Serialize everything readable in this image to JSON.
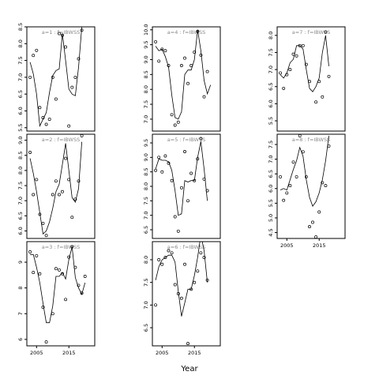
{
  "figure": {
    "xlabel": "Year"
  },
  "chart_data": [
    {
      "type": "scatter",
      "title": "a=1 : f=IBWSS",
      "xlim": [
        2002,
        2023
      ],
      "ylim": [
        5.4,
        8.5
      ],
      "yticks": [
        5.5,
        6.0,
        6.5,
        7.0,
        7.5,
        8.0,
        8.5
      ],
      "xticks": [],
      "show_x_tick_labels": false,
      "points": [
        [
          2003,
          7.0
        ],
        [
          2004,
          7.65
        ],
        [
          2005,
          7.8
        ],
        [
          2006,
          6.1
        ],
        [
          2007,
          5.8
        ],
        [
          2008,
          5.6
        ],
        [
          2009,
          5.75
        ],
        [
          2010,
          7.0
        ],
        [
          2011,
          6.35
        ],
        [
          2012,
          8.3
        ],
        [
          2013,
          8.25
        ],
        [
          2014,
          7.9
        ],
        [
          2015,
          5.55
        ],
        [
          2016,
          6.7
        ],
        [
          2017,
          7.0
        ],
        [
          2018,
          7.55
        ],
        [
          2019,
          8.4
        ]
      ],
      "fit": [
        [
          2003,
          7.45
        ],
        [
          2004,
          7.1
        ],
        [
          2005,
          6.5
        ],
        [
          2006,
          5.55
        ],
        [
          2007,
          5.75
        ],
        [
          2008,
          5.95
        ],
        [
          2009,
          6.55
        ],
        [
          2010,
          7.05
        ],
        [
          2011,
          7.2
        ],
        [
          2012,
          7.25
        ],
        [
          2013,
          8.3
        ],
        [
          2014,
          7.5
        ],
        [
          2015,
          6.65
        ],
        [
          2016,
          6.5
        ],
        [
          2017,
          6.45
        ],
        [
          2018,
          7.3
        ],
        [
          2019,
          8.5
        ]
      ]
    },
    {
      "type": "scatter",
      "title": "a=2 : f=IBWSS",
      "xlim": [
        2002,
        2023
      ],
      "ylim": [
        5.75,
        9.2
      ],
      "yticks": [
        6.0,
        6.5,
        7.0,
        7.5,
        8.0,
        8.5,
        9.0
      ],
      "xticks": [],
      "show_x_tick_labels": false,
      "points": [
        [
          2003,
          8.6
        ],
        [
          2004,
          7.2
        ],
        [
          2005,
          7.7
        ],
        [
          2006,
          6.55
        ],
        [
          2007,
          6.25
        ],
        [
          2008,
          5.85
        ],
        [
          2010,
          7.2
        ],
        [
          2011,
          7.65
        ],
        [
          2012,
          7.2
        ],
        [
          2013,
          7.3
        ],
        [
          2014,
          8.4
        ],
        [
          2015,
          7.7
        ],
        [
          2016,
          6.45
        ],
        [
          2017,
          7.05
        ],
        [
          2018,
          7.65
        ],
        [
          2019,
          9.15
        ]
      ],
      "fit": [
        [
          2003,
          8.4
        ],
        [
          2004,
          7.9
        ],
        [
          2005,
          7.3
        ],
        [
          2006,
          6.6
        ],
        [
          2007,
          5.9
        ],
        [
          2008,
          6.0
        ],
        [
          2009,
          6.3
        ],
        [
          2010,
          6.75
        ],
        [
          2011,
          7.3
        ],
        [
          2012,
          7.55
        ],
        [
          2013,
          8.2
        ],
        [
          2014,
          8.9
        ],
        [
          2015,
          8.0
        ],
        [
          2016,
          7.1
        ],
        [
          2017,
          6.95
        ],
        [
          2018,
          7.4
        ],
        [
          2019,
          8.95
        ]
      ]
    },
    {
      "type": "scatter",
      "title": "a=3 : f=IBWSS",
      "xlim": [
        2002,
        2023
      ],
      "ylim": [
        5.75,
        9.8
      ],
      "yticks": [
        6,
        7,
        8,
        9
      ],
      "xticks": [
        2005,
        2015
      ],
      "show_x_tick_labels": true,
      "points": [
        [
          2003,
          9.4
        ],
        [
          2004,
          8.6
        ],
        [
          2005,
          9.25
        ],
        [
          2006,
          8.55
        ],
        [
          2007,
          7.25
        ],
        [
          2008,
          5.9
        ],
        [
          2010,
          7.0
        ],
        [
          2011,
          8.75
        ],
        [
          2012,
          8.7
        ],
        [
          2013,
          8.55
        ],
        [
          2014,
          7.55
        ],
        [
          2015,
          9.2
        ],
        [
          2016,
          9.6
        ],
        [
          2017,
          8.8
        ],
        [
          2018,
          8.1
        ],
        [
          2019,
          7.8
        ],
        [
          2020,
          8.45
        ]
      ],
      "fit": [
        [
          2003,
          9.3
        ],
        [
          2004,
          9.3
        ],
        [
          2005,
          8.8
        ],
        [
          2006,
          8.2
        ],
        [
          2007,
          7.4
        ],
        [
          2008,
          6.65
        ],
        [
          2009,
          6.65
        ],
        [
          2010,
          7.3
        ],
        [
          2011,
          8.45
        ],
        [
          2012,
          8.45
        ],
        [
          2013,
          8.6
        ],
        [
          2014,
          8.35
        ],
        [
          2015,
          9.1
        ],
        [
          2016,
          9.6
        ],
        [
          2017,
          8.4
        ],
        [
          2018,
          8.0
        ],
        [
          2019,
          7.75
        ],
        [
          2020,
          8.2
        ]
      ]
    },
    {
      "type": "scatter",
      "title": "a=4 : f=IBWSS",
      "xlim": [
        2002,
        2023
      ],
      "ylim": [
        6.6,
        10.1
      ],
      "yticks": [
        7.0,
        7.5,
        8.0,
        8.5,
        9.0,
        9.5,
        10.0
      ],
      "xticks": [],
      "show_x_tick_labels": false,
      "points": [
        [
          2003,
          9.6
        ],
        [
          2004,
          8.95
        ],
        [
          2005,
          9.35
        ],
        [
          2006,
          9.3
        ],
        [
          2007,
          8.8
        ],
        [
          2008,
          7.15
        ],
        [
          2009,
          6.8
        ],
        [
          2010,
          6.9
        ],
        [
          2011,
          8.8
        ],
        [
          2012,
          9.05
        ],
        [
          2013,
          8.2
        ],
        [
          2014,
          8.8
        ],
        [
          2015,
          9.25
        ],
        [
          2016,
          9.95
        ],
        [
          2017,
          9.15
        ],
        [
          2018,
          7.75
        ],
        [
          2019,
          8.6
        ]
      ],
      "fit": [
        [
          2003,
          9.45
        ],
        [
          2004,
          9.3
        ],
        [
          2005,
          9.35
        ],
        [
          2006,
          9.1
        ],
        [
          2007,
          8.75
        ],
        [
          2008,
          7.8
        ],
        [
          2009,
          7.05
        ],
        [
          2010,
          7.0
        ],
        [
          2011,
          7.25
        ],
        [
          2012,
          8.5
        ],
        [
          2013,
          8.65
        ],
        [
          2014,
          8.65
        ],
        [
          2015,
          9.0
        ],
        [
          2016,
          10.0
        ],
        [
          2017,
          9.3
        ],
        [
          2018,
          8.3
        ],
        [
          2019,
          7.85
        ],
        [
          2020,
          8.15
        ]
      ]
    },
    {
      "type": "scatter",
      "title": "a=5 : f=IBWSS",
      "xlim": [
        2002,
        2023
      ],
      "ylim": [
        6.2,
        9.8
      ],
      "yticks": [
        6.5,
        7.0,
        7.5,
        8.0,
        8.5,
        9.0,
        9.5
      ],
      "xticks": [],
      "show_x_tick_labels": false,
      "points": [
        [
          2003,
          8.55
        ],
        [
          2004,
          9.0
        ],
        [
          2005,
          8.5
        ],
        [
          2006,
          9.05
        ],
        [
          2007,
          8.8
        ],
        [
          2008,
          8.2
        ],
        [
          2009,
          6.95
        ],
        [
          2010,
          6.45
        ],
        [
          2011,
          7.95
        ],
        [
          2012,
          9.2
        ],
        [
          2013,
          7.5
        ],
        [
          2014,
          8.45
        ],
        [
          2015,
          8.2
        ],
        [
          2016,
          8.95
        ],
        [
          2017,
          9.65
        ],
        [
          2018,
          8.25
        ],
        [
          2019,
          7.85
        ]
      ],
      "fit": [
        [
          2003,
          8.6
        ],
        [
          2004,
          8.95
        ],
        [
          2005,
          8.9
        ],
        [
          2006,
          8.9
        ],
        [
          2007,
          8.85
        ],
        [
          2008,
          8.55
        ],
        [
          2009,
          7.85
        ],
        [
          2010,
          7.0
        ],
        [
          2011,
          7.05
        ],
        [
          2012,
          8.2
        ],
        [
          2013,
          8.15
        ],
        [
          2014,
          8.2
        ],
        [
          2015,
          8.2
        ],
        [
          2016,
          9.0
        ],
        [
          2017,
          9.55
        ],
        [
          2018,
          8.6
        ],
        [
          2019,
          7.5
        ]
      ]
    },
    {
      "type": "scatter",
      "title": "a=6 : f=IBWSS",
      "xlim": [
        2002,
        2023
      ],
      "ylim": [
        6.1,
        8.4
      ],
      "yticks": [
        6.5,
        7.0,
        7.5,
        8.0
      ],
      "xticks": [
        2005,
        2015
      ],
      "show_x_tick_labels": true,
      "points": [
        [
          2003,
          7.0
        ],
        [
          2004,
          8.0
        ],
        [
          2005,
          7.9
        ],
        [
          2006,
          8.05
        ],
        [
          2007,
          8.2
        ],
        [
          2008,
          8.15
        ],
        [
          2009,
          7.45
        ],
        [
          2010,
          7.25
        ],
        [
          2011,
          7.15
        ],
        [
          2012,
          7.9
        ],
        [
          2013,
          6.15
        ],
        [
          2014,
          7.35
        ],
        [
          2015,
          7.5
        ],
        [
          2016,
          7.75
        ],
        [
          2017,
          8.15
        ],
        [
          2018,
          8.05
        ],
        [
          2019,
          7.55
        ]
      ],
      "fit": [
        [
          2003,
          7.55
        ],
        [
          2004,
          7.85
        ],
        [
          2005,
          8.0
        ],
        [
          2006,
          8.05
        ],
        [
          2007,
          8.1
        ],
        [
          2008,
          8.1
        ],
        [
          2009,
          7.95
        ],
        [
          2010,
          7.3
        ],
        [
          2011,
          6.75
        ],
        [
          2012,
          7.05
        ],
        [
          2013,
          7.35
        ],
        [
          2014,
          7.35
        ],
        [
          2015,
          7.65
        ],
        [
          2016,
          8.05
        ],
        [
          2017,
          8.55
        ],
        [
          2018,
          8.2
        ],
        [
          2019,
          7.5
        ]
      ]
    },
    {
      "type": "scatter",
      "title": "a=7 : f=IBWSS",
      "xlim": [
        2002,
        2023
      ],
      "ylim": [
        5.2,
        8.25
      ],
      "yticks": [
        5.5,
        6.0,
        6.5,
        7.0,
        7.5,
        8.0
      ],
      "xticks": [],
      "show_x_tick_labels": false,
      "points": [
        [
          2003,
          6.9
        ],
        [
          2004,
          6.45
        ],
        [
          2005,
          6.85
        ],
        [
          2006,
          7.0
        ],
        [
          2007,
          7.45
        ],
        [
          2008,
          7.4
        ],
        [
          2009,
          7.7
        ],
        [
          2010,
          7.7
        ],
        [
          2011,
          7.15
        ],
        [
          2012,
          6.65
        ],
        [
          2013,
          5.15
        ],
        [
          2014,
          6.05
        ],
        [
          2015,
          6.65
        ],
        [
          2016,
          6.2
        ],
        [
          2017,
          8.1
        ],
        [
          2018,
          6.8
        ]
      ],
      "fit": [
        [
          2003,
          6.85
        ],
        [
          2004,
          6.75
        ],
        [
          2005,
          6.9
        ],
        [
          2006,
          7.2
        ],
        [
          2007,
          7.3
        ],
        [
          2008,
          7.7
        ],
        [
          2009,
          7.7
        ],
        [
          2010,
          7.6
        ],
        [
          2011,
          7.0
        ],
        [
          2012,
          6.45
        ],
        [
          2013,
          6.35
        ],
        [
          2014,
          6.5
        ],
        [
          2015,
          6.75
        ],
        [
          2016,
          7.5
        ],
        [
          2017,
          8.0
        ],
        [
          2018,
          7.1
        ]
      ]
    },
    {
      "type": "scatter",
      "title": "a=8 : f=IBWSS",
      "xlim": [
        2002,
        2023
      ],
      "ylim": [
        4.3,
        7.85
      ],
      "yticks": [
        4.5,
        5.0,
        5.5,
        6.0,
        6.5,
        7.0,
        7.5
      ],
      "xticks": [
        2005,
        2015
      ],
      "show_x_tick_labels": true,
      "points": [
        [
          2003,
          6.4
        ],
        [
          2004,
          5.6
        ],
        [
          2005,
          5.85
        ],
        [
          2006,
          6.1
        ],
        [
          2007,
          6.9
        ],
        [
          2008,
          6.4
        ],
        [
          2009,
          7.8
        ],
        [
          2010,
          7.25
        ],
        [
          2011,
          6.4
        ],
        [
          2012,
          4.7
        ],
        [
          2013,
          4.85
        ],
        [
          2014,
          4.35
        ],
        [
          2015,
          5.2
        ],
        [
          2016,
          6.2
        ],
        [
          2017,
          6.1
        ],
        [
          2018,
          7.45
        ]
      ],
      "fit": [
        [
          2003,
          5.95
        ],
        [
          2004,
          6.0
        ],
        [
          2005,
          5.95
        ],
        [
          2006,
          6.3
        ],
        [
          2007,
          6.65
        ],
        [
          2008,
          6.95
        ],
        [
          2009,
          7.4
        ],
        [
          2010,
          7.1
        ],
        [
          2011,
          6.3
        ],
        [
          2012,
          5.7
        ],
        [
          2013,
          5.4
        ],
        [
          2014,
          5.55
        ],
        [
          2015,
          5.85
        ],
        [
          2016,
          6.3
        ],
        [
          2017,
          6.95
        ],
        [
          2018,
          7.8
        ]
      ]
    }
  ]
}
